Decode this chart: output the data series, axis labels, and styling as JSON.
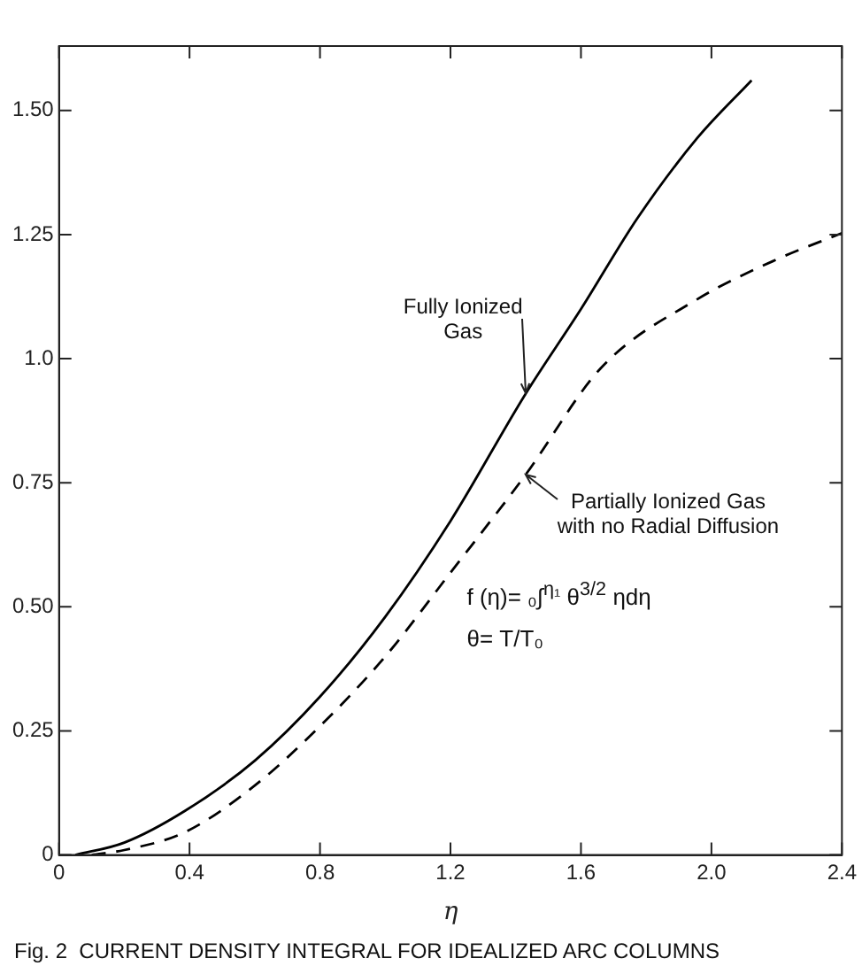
{
  "chart_data": {
    "type": "line",
    "xlabel": "η",
    "xlim": [
      0,
      2.4
    ],
    "ylim": [
      0,
      1.63
    ],
    "xticks": [
      0,
      0.4,
      0.8,
      1.2,
      1.6,
      {
        "value": 2.0,
        "label": "2.0"
      },
      2.4
    ],
    "yticks": [
      0,
      0.25,
      {
        "value": 0.5,
        "label": "0.50"
      },
      {
        "value": 0.75,
        "label": "0.75"
      },
      {
        "value": 1.0,
        "label": "1.0"
      },
      1.25,
      {
        "value": 1.5,
        "label": "1.50"
      }
    ],
    "grid": false,
    "legend": false,
    "marker": "none",
    "series": [
      {
        "color": "#000000",
        "line_style": "solid",
        "x": [
          0.05,
          0.2,
          0.386,
          0.6,
          0.8,
          1.0,
          1.2,
          1.43,
          1.6,
          1.772,
          1.957,
          2.123
        ],
        "values": [
          0,
          0.025,
          0.089,
          0.19,
          0.319,
          0.48,
          0.673,
          0.929,
          1.1,
          1.282,
          1.445,
          1.561
        ]
      },
      {
        "color": "#000000",
        "line_style": "dashed",
        "x": [
          0.1,
          0.2,
          0.386,
          0.6,
          0.793,
          1.0,
          1.2,
          1.43,
          1.661,
          1.957,
          2.2,
          2.4
        ],
        "values": [
          0,
          0.01,
          0.046,
          0.14,
          0.255,
          0.4,
          0.569,
          0.766,
          0.981,
          1.12,
          1.2,
          1.253
        ]
      }
    ],
    "annotations": [
      {
        "text": "Fully Ionized\nGas",
        "x": 1.43,
        "y": 0.929
      },
      {
        "text": "Partially Ionized Gas\nwith no Radial Diffusion",
        "x": 1.43,
        "y": 0.766
      },
      "f (η)= ₀∫$^{η₁}$ θ$^{3/2}$ ηdη",
      "θ= T/T₀",
      "Fig. 2  CURRENT DENSITY INTEGRAL FOR IDEALIZED ARC COLUMNS"
    ]
  }
}
